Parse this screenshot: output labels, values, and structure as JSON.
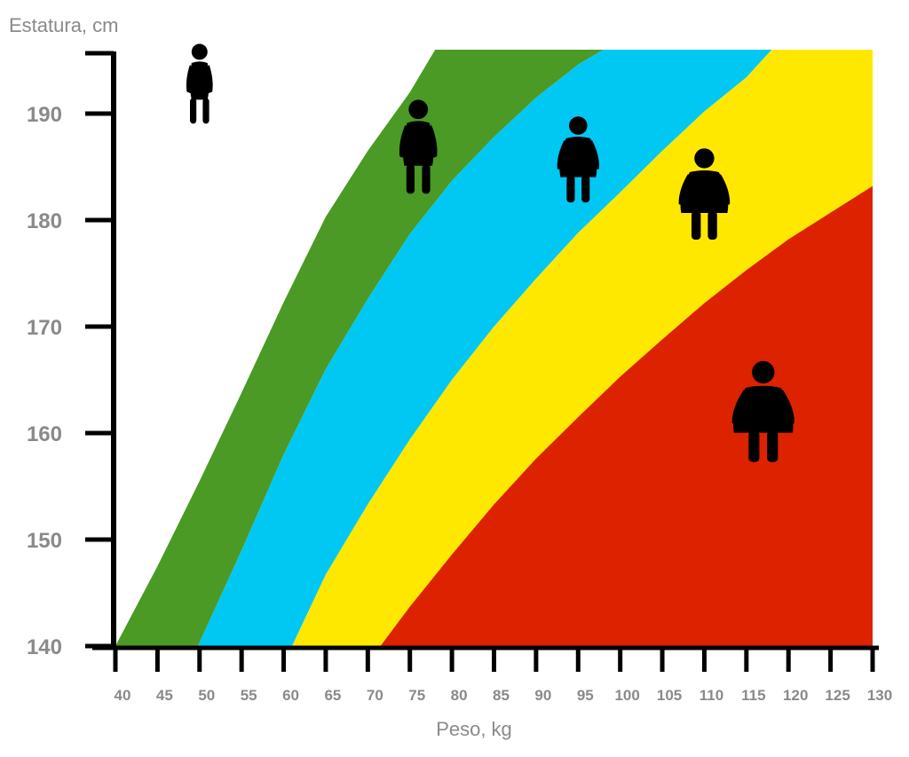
{
  "chart_data": {
    "type": "area",
    "ylabel": "Estatura, cm",
    "xlabel": "Peso, kg",
    "xlim": [
      40,
      130
    ],
    "ylim": [
      140,
      196
    ],
    "x_ticks": [
      "40",
      "45",
      "50",
      "55",
      "60",
      "65",
      "70",
      "75",
      "80",
      "85",
      "90",
      "95",
      "100",
      "105",
      "110",
      "115",
      "120",
      "125",
      "130"
    ],
    "y_ticks": [
      "140",
      "150",
      "160",
      "170",
      "180",
      "190"
    ],
    "grid": false,
    "legend": "none",
    "zones": [
      {
        "color": "#4a9a25",
        "lower_boundary": [
          [
            40,
            140
          ],
          [
            45,
            147.5
          ],
          [
            50,
            155.5
          ],
          [
            55,
            163.8
          ],
          [
            60,
            172.3
          ],
          [
            65,
            180.3
          ],
          [
            70,
            186.5
          ],
          [
            75,
            192
          ],
          [
            78,
            196
          ]
        ],
        "upper_boundary": [
          [
            49.8,
            140
          ],
          [
            55,
            149
          ],
          [
            60,
            158
          ],
          [
            65,
            166
          ],
          [
            70,
            172.6
          ],
          [
            75,
            178.7
          ],
          [
            80,
            183.7
          ],
          [
            85,
            187.8
          ],
          [
            90,
            191.5
          ],
          [
            95,
            194.6
          ],
          [
            98,
            196
          ]
        ]
      },
      {
        "color": "#00c8f2",
        "lower_boundary": [
          [
            49.8,
            140
          ],
          [
            55,
            149
          ],
          [
            60,
            158
          ],
          [
            65,
            166
          ],
          [
            70,
            172.6
          ],
          [
            75,
            178.7
          ],
          [
            80,
            183.7
          ],
          [
            85,
            187.8
          ],
          [
            90,
            191.5
          ],
          [
            95,
            194.6
          ],
          [
            98,
            196
          ]
        ],
        "upper_boundary": [
          [
            61,
            140
          ],
          [
            65,
            146.7
          ],
          [
            70,
            153.3
          ],
          [
            75,
            159.4
          ],
          [
            80,
            165
          ],
          [
            85,
            170
          ],
          [
            90,
            174.5
          ],
          [
            95,
            178.8
          ],
          [
            100,
            182.6
          ],
          [
            105,
            186.5
          ],
          [
            110,
            190.2
          ],
          [
            115,
            193.4
          ],
          [
            118,
            196
          ]
        ]
      },
      {
        "color": "#ffe800",
        "lower_boundary": [
          [
            61,
            140
          ],
          [
            65,
            146.7
          ],
          [
            70,
            153.3
          ],
          [
            75,
            159.4
          ],
          [
            80,
            165
          ],
          [
            85,
            170
          ],
          [
            90,
            174.5
          ],
          [
            95,
            178.8
          ],
          [
            100,
            182.6
          ],
          [
            105,
            186.5
          ],
          [
            110,
            190.2
          ],
          [
            115,
            193.4
          ],
          [
            118,
            196
          ]
        ],
        "upper_boundary": [
          [
            71.5,
            140
          ],
          [
            75,
            143.7
          ],
          [
            80,
            148.6
          ],
          [
            85,
            153.3
          ],
          [
            90,
            157.6
          ],
          [
            95,
            161.5
          ],
          [
            100,
            165.3
          ],
          [
            105,
            168.8
          ],
          [
            110,
            172.2
          ],
          [
            115,
            175.3
          ],
          [
            120,
            178.2
          ],
          [
            125,
            180.7
          ],
          [
            130,
            183.2
          ]
        ]
      },
      {
        "color": "#dd2200",
        "lower_boundary": [
          [
            71.5,
            140
          ],
          [
            75,
            143.7
          ],
          [
            80,
            148.6
          ],
          [
            85,
            153.3
          ],
          [
            90,
            157.6
          ],
          [
            95,
            161.5
          ],
          [
            100,
            165.3
          ],
          [
            105,
            168.8
          ],
          [
            110,
            172.2
          ],
          [
            115,
            175.3
          ],
          [
            120,
            178.2
          ],
          [
            125,
            180.7
          ],
          [
            130,
            183.2
          ]
        ],
        "upper_boundary": [
          [
            130,
            140
          ]
        ]
      }
    ],
    "figures": [
      {
        "name": "figure-underweight",
        "x": 50,
        "y": 192.5,
        "build": 0.0,
        "scale": 0.9
      },
      {
        "name": "figure-normal",
        "x": 76,
        "y": 186.5,
        "build": 0.25,
        "scale": 1.05
      },
      {
        "name": "figure-overweight",
        "x": 95,
        "y": 185.3,
        "build": 0.55,
        "scale": 0.95
      },
      {
        "name": "figure-obese",
        "x": 110,
        "y": 182,
        "build": 0.8,
        "scale": 1.0
      },
      {
        "name": "figure-morbidly-obese",
        "x": 117,
        "y": 161.5,
        "build": 1.0,
        "scale": 1.1
      }
    ],
    "axis_color": "#000000"
  }
}
